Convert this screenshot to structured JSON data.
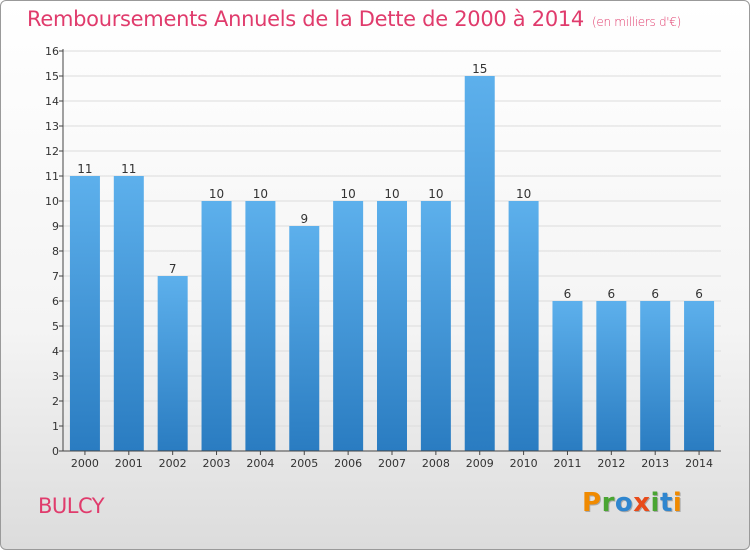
{
  "header": {
    "title": "Remboursements Annuels de la Dette de 2000 à 2014",
    "unit": "(en milliers d'€)"
  },
  "footer": {
    "commune": "BULCY",
    "logo_text": "Proxiti"
  },
  "colors": {
    "title": "#e03b6c",
    "bar_top": "#5db0ec",
    "bar_bottom": "#2a7cc1",
    "axis": "#444444",
    "grid": "#dcdcdc",
    "logo_letters": [
      "#f08a00",
      "#4aa532",
      "#2f86cf",
      "#e84b1a",
      "#4aa532",
      "#2f86cf",
      "#f08a00"
    ]
  },
  "chart_data": {
    "type": "bar",
    "title": "Remboursements Annuels de la Dette de 2000 à 2014",
    "subtitle": "(en milliers d'€)",
    "xlabel": "",
    "ylabel": "",
    "categories": [
      "2000",
      "2001",
      "2002",
      "2003",
      "2004",
      "2005",
      "2006",
      "2007",
      "2008",
      "2009",
      "2010",
      "2011",
      "2012",
      "2013",
      "2014"
    ],
    "values": [
      11,
      11,
      7,
      10,
      10,
      9,
      10,
      10,
      10,
      15,
      10,
      6,
      6,
      6,
      6
    ],
    "ylim": [
      0,
      16
    ],
    "yticks": [
      0,
      1,
      2,
      3,
      4,
      5,
      6,
      7,
      8,
      9,
      10,
      11,
      12,
      13,
      14,
      15,
      16
    ],
    "grid": true,
    "data_labels": true
  }
}
